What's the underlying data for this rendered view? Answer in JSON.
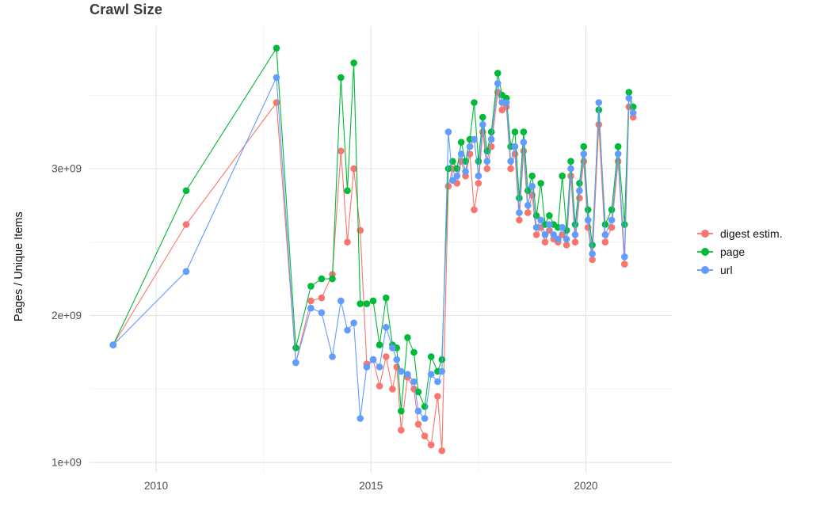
{
  "title": "Crawl Size",
  "chart_data": {
    "type": "line",
    "title": "Crawl Size",
    "xlabel": "",
    "ylabel": "Pages / Unique Items",
    "y_values_unit": "1e9 (values below are in billions)",
    "xlim": [
      2008.45,
      2022.0
    ],
    "ylim": [
      0.93,
      3.97
    ],
    "grid": true,
    "legend_position": "right",
    "x_ticks": [
      {
        "value": 2010,
        "label": "2010"
      },
      {
        "value": 2015,
        "label": "2015"
      },
      {
        "value": 2020,
        "label": "2020"
      }
    ],
    "x_minor": [
      2012.5,
      2017.5
    ],
    "y_ticks": [
      {
        "value": 1,
        "label": "1e+09"
      },
      {
        "value": 2,
        "label": "2e+09"
      },
      {
        "value": 3,
        "label": "3e+09"
      }
    ],
    "y_minor": [
      1.5,
      2.5,
      3.5
    ],
    "x": [
      2009.0,
      2010.7,
      2012.8,
      2013.25,
      2013.6,
      2013.85,
      2014.1,
      2014.3,
      2014.45,
      2014.6,
      2014.75,
      2014.9,
      2015.05,
      2015.2,
      2015.35,
      2015.5,
      2015.6,
      2015.7,
      2015.85,
      2016.0,
      2016.1,
      2016.25,
      2016.4,
      2016.55,
      2016.65,
      2016.8,
      2016.9,
      2017.0,
      2017.1,
      2017.2,
      2017.3,
      2017.4,
      2017.5,
      2017.6,
      2017.7,
      2017.8,
      2017.95,
      2018.05,
      2018.15,
      2018.25,
      2018.35,
      2018.45,
      2018.55,
      2018.65,
      2018.75,
      2018.85,
      2018.95,
      2019.05,
      2019.15,
      2019.25,
      2019.35,
      2019.45,
      2019.55,
      2019.65,
      2019.75,
      2019.85,
      2019.95,
      2020.05,
      2020.15,
      2020.3,
      2020.45,
      2020.6,
      2020.75,
      2020.9,
      2021.0,
      2021.1
    ],
    "series": [
      {
        "id": "digest-estim",
        "name": "digest estim.",
        "color": "#F8766D",
        "values": [
          1.8,
          2.62,
          3.45,
          1.68,
          2.1,
          2.12,
          2.28,
          3.12,
          2.5,
          3.0,
          2.58,
          1.67,
          1.7,
          1.52,
          1.72,
          1.5,
          1.65,
          1.22,
          1.58,
          1.5,
          1.26,
          1.18,
          1.12,
          1.45,
          1.08,
          2.88,
          3.0,
          2.9,
          3.05,
          2.95,
          3.1,
          2.72,
          2.9,
          3.25,
          3.0,
          3.15,
          3.52,
          3.4,
          3.42,
          3.0,
          3.1,
          2.65,
          3.12,
          2.7,
          2.82,
          2.55,
          2.6,
          2.5,
          2.58,
          2.52,
          2.5,
          2.55,
          2.48,
          2.95,
          2.5,
          2.8,
          3.05,
          2.6,
          2.38,
          3.3,
          2.5,
          2.6,
          3.05,
          2.35,
          3.42,
          3.35
        ]
      },
      {
        "id": "page",
        "name": "page",
        "color": "#00BA38",
        "values": [
          1.8,
          2.85,
          3.82,
          1.78,
          2.2,
          2.25,
          2.25,
          3.62,
          2.85,
          3.72,
          2.08,
          2.08,
          2.1,
          1.8,
          2.12,
          1.8,
          1.78,
          1.35,
          1.85,
          1.75,
          1.48,
          1.38,
          1.72,
          1.62,
          1.7,
          3.0,
          3.05,
          3.0,
          3.18,
          3.05,
          3.2,
          3.45,
          3.05,
          3.35,
          3.12,
          3.25,
          3.65,
          3.5,
          3.48,
          3.15,
          3.25,
          2.8,
          3.25,
          2.85,
          2.95,
          2.68,
          2.9,
          2.62,
          2.68,
          2.62,
          2.6,
          2.95,
          2.58,
          3.05,
          2.62,
          2.9,
          3.15,
          2.72,
          2.48,
          3.4,
          2.62,
          2.72,
          3.15,
          2.62,
          3.52,
          3.42
        ]
      },
      {
        "id": "url",
        "name": "url",
        "color": "#619CFF",
        "values": [
          1.8,
          2.3,
          3.62,
          1.68,
          2.05,
          2.02,
          1.72,
          2.1,
          1.9,
          1.95,
          1.3,
          1.65,
          1.7,
          1.65,
          1.92,
          1.78,
          1.7,
          1.62,
          1.6,
          1.55,
          1.35,
          1.3,
          1.6,
          1.55,
          1.62,
          3.25,
          2.92,
          2.95,
          3.1,
          2.98,
          3.15,
          3.2,
          2.95,
          3.3,
          3.05,
          3.2,
          3.58,
          3.45,
          3.45,
          3.05,
          3.15,
          2.7,
          3.18,
          2.75,
          2.88,
          2.6,
          2.65,
          2.55,
          2.62,
          2.55,
          2.52,
          2.6,
          2.52,
          3.0,
          2.55,
          2.85,
          3.1,
          2.65,
          2.42,
          3.45,
          2.55,
          2.65,
          3.1,
          2.4,
          3.48,
          3.38
        ]
      }
    ]
  }
}
